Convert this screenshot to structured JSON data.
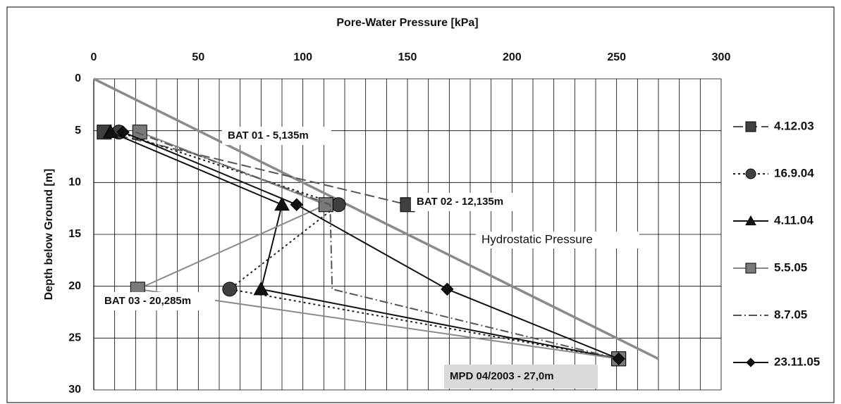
{
  "chart_data": {
    "type": "line",
    "title": "Pore-Water Pressure [kPa]",
    "y_label": "Depth below Ground [m]",
    "xlim": [
      0,
      300
    ],
    "xticks": [
      0,
      50,
      100,
      150,
      200,
      250,
      300
    ],
    "x_minor_ticks": [
      10,
      20,
      30,
      40,
      60,
      70,
      80,
      90,
      110,
      120,
      130,
      140,
      160,
      170,
      180,
      190,
      210,
      220,
      230,
      240,
      260,
      270,
      280,
      290
    ],
    "ylim": [
      0,
      30
    ],
    "yticks": [
      0,
      5,
      10,
      15,
      20,
      25,
      30
    ],
    "y_inverted": true,
    "grid": true,
    "legend": "right",
    "series": [
      {
        "name": "4.12.03",
        "color": "#555555",
        "marker": "square",
        "marker_color": "#404040",
        "dash": "14,6",
        "x": [
          5,
          150,
          null,
          251
        ],
        "y": [
          5.135,
          12.135,
          20.285,
          27.0
        ]
      },
      {
        "name": "16.9.04",
        "color": "#222222",
        "marker": "circle",
        "marker_color": "#404040",
        "dash": "3,4",
        "x": [
          12,
          117,
          65,
          251
        ],
        "y": [
          5.135,
          12.135,
          20.285,
          27.0
        ]
      },
      {
        "name": "4.11.04",
        "color": "#111111",
        "marker": "triangle",
        "marker_color": "#111111",
        "dash": "",
        "x": [
          8,
          90,
          80,
          251
        ],
        "y": [
          5.135,
          12.135,
          20.285,
          27.0
        ]
      },
      {
        "name": "5.5.05",
        "color": "#8a8a8a",
        "marker": "square",
        "marker_color": "#7a7a7a",
        "dash": "",
        "x": [
          22,
          111,
          21,
          251
        ],
        "y": [
          5.135,
          12.135,
          20.285,
          27.0
        ]
      },
      {
        "name": "8.7.05",
        "color": "#555555",
        "marker": "none",
        "marker_color": "#555555",
        "dash": "12,4,2,4",
        "x": [
          20,
          113,
          114,
          251
        ],
        "y": [
          5.135,
          12.135,
          20.285,
          27.0
        ]
      },
      {
        "name": "23.11.05",
        "color": "#111111",
        "marker": "diamond",
        "marker_color": "#111111",
        "dash": "",
        "x": [
          14,
          97,
          169,
          251
        ],
        "y": [
          5.135,
          12.135,
          20.285,
          27.0
        ]
      }
    ],
    "reference_line": {
      "label": "Hydrostatic Pressure",
      "color": "#8a8a8a",
      "x": [
        0,
        270
      ],
      "y": [
        0,
        27
      ]
    },
    "annotations": [
      "BAT 01 - 5,135m",
      "BAT 02 - 12,135m",
      "BAT 03 - 20,285m",
      "MPD 04/2003 - 27,0m"
    ]
  }
}
